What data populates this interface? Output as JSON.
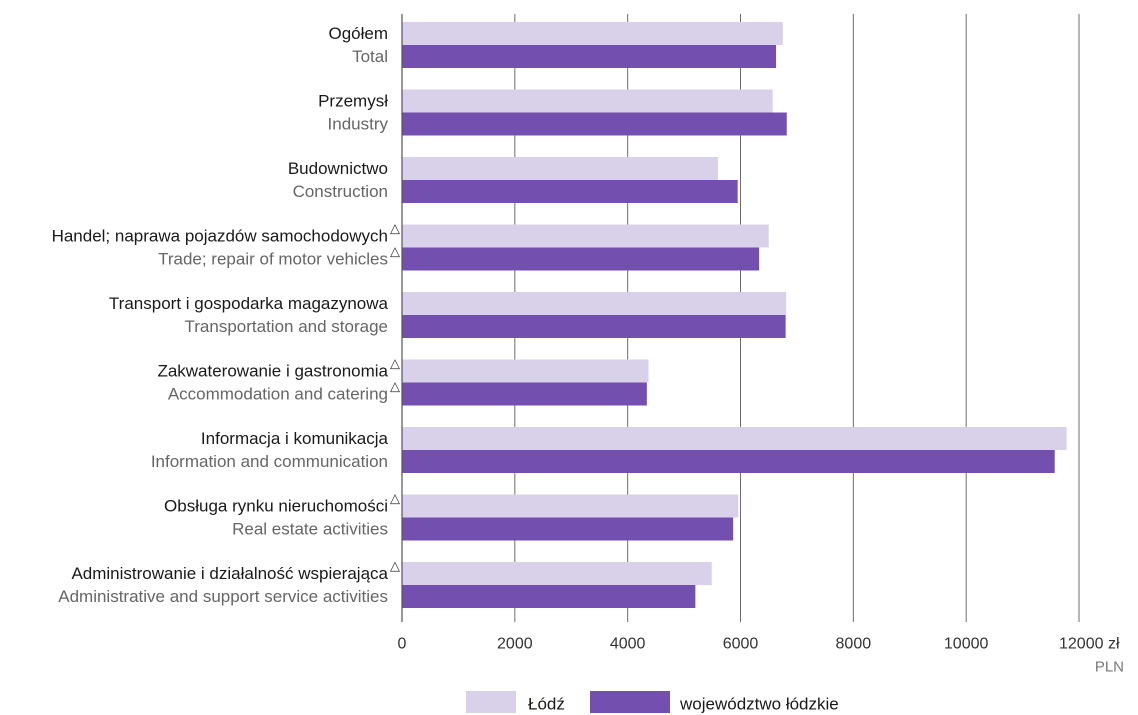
{
  "chart_data": {
    "type": "bar",
    "orientation": "horizontal",
    "categories": [
      {
        "pl": "Ogółem",
        "en": "Total",
        "marker_pl": "",
        "marker_en": ""
      },
      {
        "pl": "Przemysł",
        "en": "Industry",
        "marker_pl": "",
        "marker_en": ""
      },
      {
        "pl": "Budownictwo",
        "en": "Construction",
        "marker_pl": "",
        "marker_en": ""
      },
      {
        "pl": "Handel; naprawa pojazdów samochodowych",
        "en": "Trade; repair of motor vehicles",
        "marker_pl": "△",
        "marker_en": "△"
      },
      {
        "pl": "Transport i gospodarka magazynowa",
        "en": "Transportation and storage",
        "marker_pl": "",
        "marker_en": ""
      },
      {
        "pl": "Zakwaterowanie i gastronomia",
        "en": "Accommodation and catering",
        "marker_pl": "△",
        "marker_en": "△"
      },
      {
        "pl": "Informacja i komunikacja",
        "en": "Information and communication",
        "marker_pl": "",
        "marker_en": ""
      },
      {
        "pl": "Obsługa rynku nieruchomości",
        "en": "Real estate activities",
        "marker_pl": "△",
        "marker_en": ""
      },
      {
        "pl": "Administrowanie i działalność wspierająca",
        "en": "Administrative and support service activities",
        "marker_pl": "△",
        "marker_en": ""
      }
    ],
    "series": [
      {
        "name": "Łódź",
        "color": "#d9d0e9",
        "values": [
          6750,
          6570,
          5600,
          6500,
          6810,
          4370,
          11780,
          5960,
          5490
        ]
      },
      {
        "name": "województwo łódzkie",
        "color": "#7350b0",
        "values": [
          6630,
          6820,
          5950,
          6330,
          6800,
          4340,
          11570,
          5870,
          5200
        ]
      }
    ],
    "xlim": [
      0,
      12000
    ],
    "xticks": [
      0,
      2000,
      4000,
      6000,
      8000,
      10000,
      12000
    ],
    "xtick_labels": [
      "0",
      "2000",
      "4000",
      "6000",
      "8000",
      "10000",
      "12000 zł"
    ],
    "unit_secondary": "PLN",
    "grid": "vertical",
    "legend_position": "bottom-center"
  }
}
